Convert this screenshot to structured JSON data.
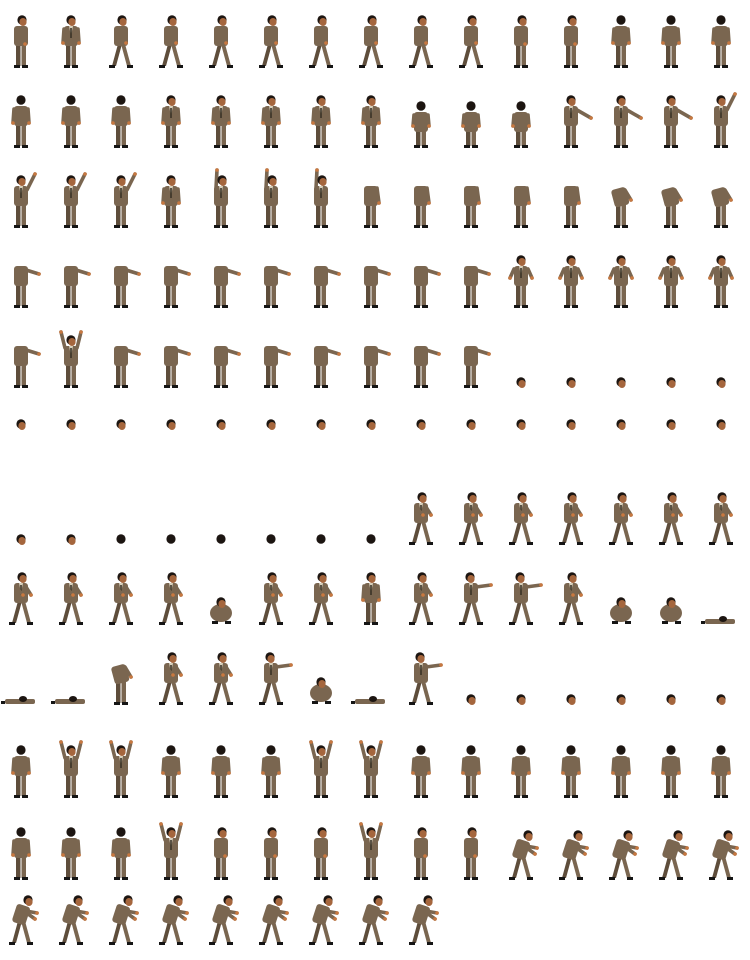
{
  "sprite_sheet": {
    "background": "#ffffff",
    "palette": {
      "suit": "#7a6650",
      "suit_shadow": "#5e4d3b",
      "skin": "#a5663d",
      "hair": "#1c1511",
      "shirt": "#d8d0bc",
      "tie": "#3a3326",
      "shoe": "#151515",
      "hand": "#c87840"
    },
    "rows": [
      {
        "frames": [
          "stand-side",
          "stand-front",
          "walk",
          "walk",
          "walk",
          "walk",
          "walk",
          "walk",
          "walk",
          "walk",
          "stand-side",
          "stand-side",
          "stand-back",
          "stand-back",
          "stand-back"
        ]
      },
      {
        "frames": [
          "stand-back",
          "stand-back",
          "stand-back",
          "stand-front",
          "stand-front",
          "stand-front",
          "stand-front",
          "stand-front",
          "short-back",
          "short-back",
          "short-back",
          "point-right",
          "point-right",
          "point-right",
          "point-up"
        ]
      },
      {
        "frames": [
          "point-up",
          "point-up",
          "point-up",
          "stand-front",
          "arm-up",
          "arm-up",
          "arm-up",
          "headless",
          "headless",
          "headless",
          "headless",
          "headless",
          "headless-bend",
          "headless-bend",
          "headless-bend"
        ]
      },
      {
        "frames": [
          "headless-arm",
          "headless-arm",
          "headless-arm",
          "headless-arm",
          "headless-arm",
          "headless-arm",
          "headless-arm",
          "headless-arm",
          "headless-arm",
          "headless-arm",
          "hands-hips",
          "hands-hips",
          "hands-hips",
          "hands-hips",
          "hands-hips"
        ]
      },
      {
        "frames": [
          "headless-arm",
          "arms-up",
          "headless-arm",
          "headless-arm",
          "headless-arm",
          "headless-arm",
          "headless-arm",
          "headless-arm",
          "headless-arm",
          "headless-arm",
          "head",
          "head",
          "head",
          "head",
          "head"
        ]
      },
      {
        "frames": [
          "head",
          "head",
          "head",
          "head",
          "head",
          "head",
          "head",
          "head",
          "head",
          "head",
          "head",
          "head",
          "head",
          "head",
          "head"
        ]
      },
      {
        "frames": [
          "head",
          "head",
          "head-back",
          "head-back",
          "head-back",
          "head-back",
          "head-back",
          "head-back",
          "fight",
          "fight",
          "fight",
          "fight",
          "fight",
          "fight",
          "fight"
        ]
      },
      {
        "frames": [
          "fight",
          "fight",
          "fight",
          "fight",
          "crouch",
          "fight",
          "fight",
          "stand-front",
          "fight",
          "punch",
          "punch",
          "fight",
          "crouch",
          "crouch",
          "lying"
        ]
      },
      {
        "frames": [
          "lying",
          "lying",
          "headless-bend",
          "fight",
          "fight",
          "punch",
          "crouch",
          "lying",
          "punch",
          "head",
          "head",
          "head",
          "head",
          "head",
          "head"
        ]
      },
      {
        "frames": [
          "stand-back",
          "arms-up",
          "arms-up",
          "stand-back",
          "stand-back",
          "stand-back",
          "arms-up",
          "arms-up",
          "stand-back",
          "stand-back",
          "stand-back",
          "stand-back",
          "stand-back",
          "stand-back",
          "stand-back"
        ]
      },
      {
        "frames": [
          "stand-back",
          "stand-back",
          "stand-back",
          "arms-up",
          "stand-side",
          "stand-side",
          "stand-side",
          "arms-up",
          "stand-side",
          "stand-side",
          "reach",
          "reach",
          "reach",
          "reach",
          "reach"
        ]
      },
      {
        "frames": [
          "reach",
          "reach",
          "reach",
          "reach",
          "reach",
          "reach",
          "reach",
          "reach",
          "reach"
        ]
      }
    ]
  }
}
